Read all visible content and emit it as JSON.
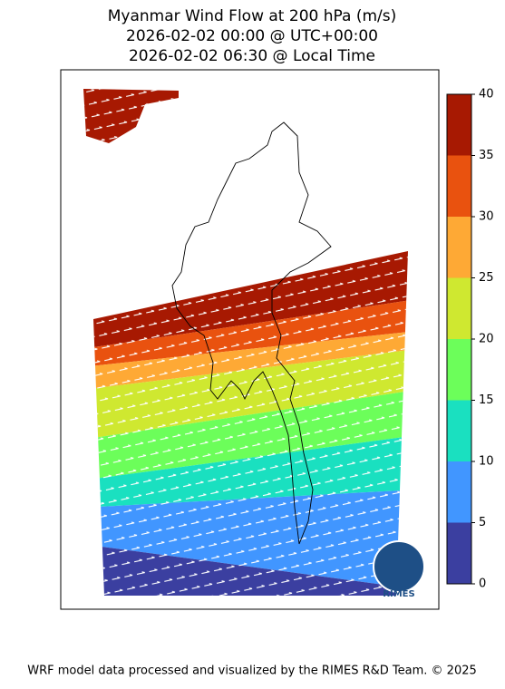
{
  "title_lines": [
    "Myanmar Wind Flow at 200 hPa (m/s)",
    "2026-02-02 00:00 @ UTC+00:00",
    "2026-02-02 06:30 @ Local Time"
  ],
  "colorbar": {
    "ticks": [
      0,
      5,
      10,
      15,
      20,
      25,
      30,
      35,
      40
    ],
    "colors": [
      "#3b3fa0",
      "#4196ff",
      "#1ae0c0",
      "#6cfe5a",
      "#cfe830",
      "#fea935",
      "#e9520f",
      "#a71902"
    ]
  },
  "logo_text": "RIMES",
  "footer": "WRF model data processed and visualized by the RIMES R&D Team. © 2025"
}
